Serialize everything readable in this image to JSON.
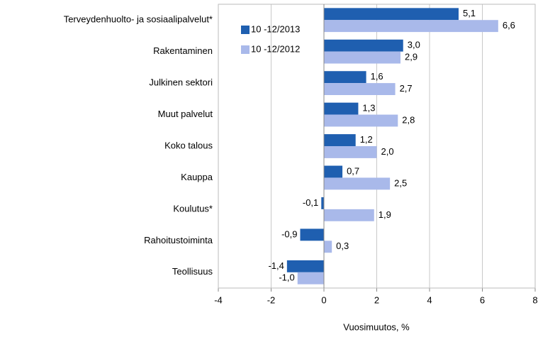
{
  "chart_data": {
    "type": "barh",
    "xlabel": "Vuosimuutos, %",
    "categories": [
      "Terveydenhuolto- ja sosiaalipalvelut*",
      "Rakentaminen",
      "Julkinen sektori",
      "Muut palvelut",
      "Koko talous",
      "Kauppa",
      "Koulutus*",
      "Rahoitustoiminta",
      "Teollisuus"
    ],
    "series": [
      {
        "name": "10 -12/2013",
        "color": "#1f5fb0",
        "values": [
          5.1,
          3.0,
          1.6,
          1.3,
          1.2,
          0.7,
          -0.1,
          -0.9,
          -1.4
        ],
        "value_labels": [
          "5,1",
          "3,0",
          "1,6",
          "1,3",
          "1,2",
          "0,7",
          "-0,1",
          "-0,9",
          "-1,4"
        ]
      },
      {
        "name": "10 -12/2012",
        "color": "#a9b9ea",
        "values": [
          6.6,
          2.9,
          2.7,
          2.8,
          2.0,
          2.5,
          1.9,
          0.3,
          -1.0
        ],
        "value_labels": [
          "6,6",
          "2,9",
          "2,7",
          "2,8",
          "2,0",
          "2,5",
          "1,9",
          "0,3",
          "-1,0"
        ]
      }
    ],
    "xlim": [
      -4,
      8
    ],
    "xticks": [
      -4,
      -2,
      0,
      2,
      4,
      6,
      8
    ],
    "grid": true,
    "legend": "upper-left"
  }
}
